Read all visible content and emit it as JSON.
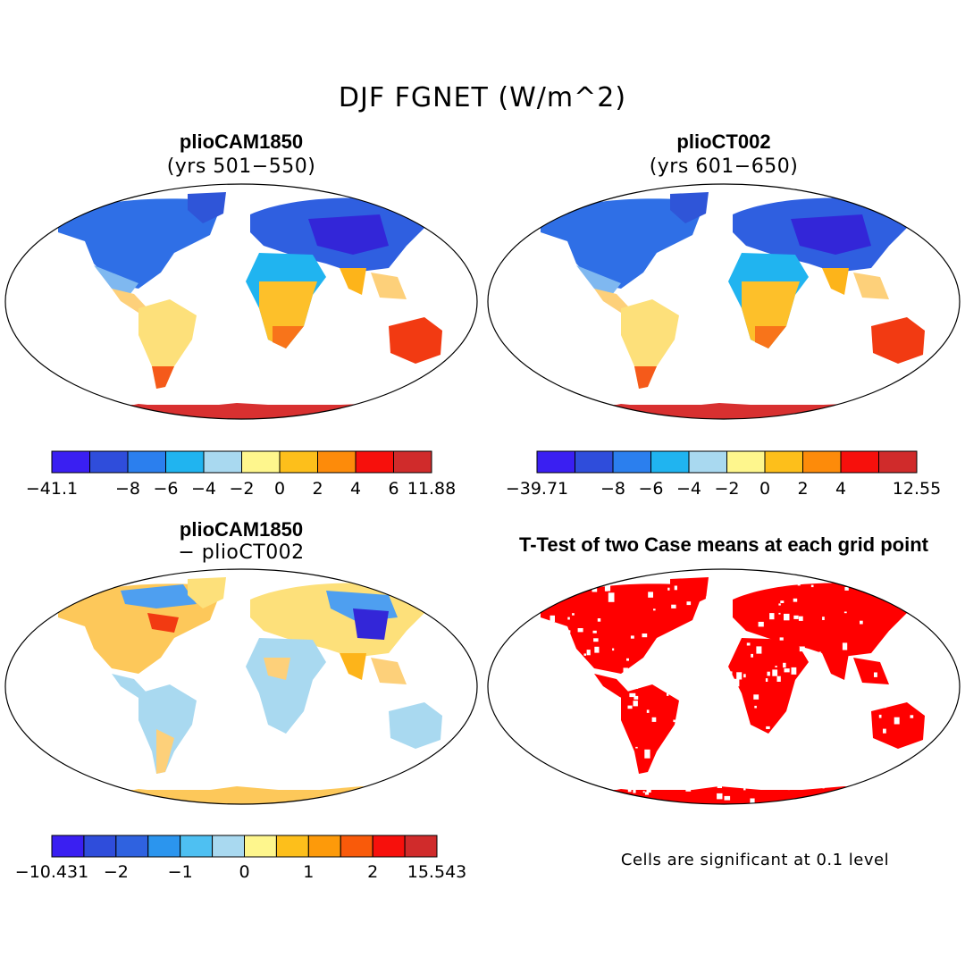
{
  "title": "DJF FGNET (W/m^2)",
  "panels": [
    {
      "title": "plioCAM1850",
      "subtitle": "(yrs 501−550)",
      "colorbar": {
        "colors": [
          "#3a1ff2",
          "#2f4ddb",
          "#2b7fee",
          "#20b4f0",
          "#a9d9f0",
          "#fef68d",
          "#fdbf1b",
          "#fd8b0a",
          "#f7100c",
          "#d02b2b"
        ],
        "labels": [
          "−41.1",
          "−8",
          "−6",
          "−4",
          "−2",
          "0",
          "2",
          "4",
          "6",
          "11.88"
        ],
        "label_positions": [
          0,
          2,
          3,
          4,
          5,
          6,
          7,
          8,
          9,
          10
        ]
      }
    },
    {
      "title": "plioCT002",
      "subtitle": "(yrs 601−650)",
      "colorbar": {
        "colors": [
          "#3a1ff2",
          "#2f4ddb",
          "#2b7fee",
          "#20b4f0",
          "#a9d9f0",
          "#fef68d",
          "#fdbf1b",
          "#fd8b0a",
          "#f7100c",
          "#d02b2b"
        ],
        "labels": [
          "−39.71",
          "−8",
          "−6",
          "−4",
          "−2",
          "0",
          "2",
          "4",
          "12.55"
        ],
        "label_positions": [
          0,
          2,
          3,
          4,
          5,
          6,
          7,
          8,
          10
        ]
      }
    },
    {
      "title": "plioCAM1850",
      "subtitle": "− plioCT002",
      "colorbar": {
        "colors": [
          "#3a1ff2",
          "#2f4ddb",
          "#2f62e0",
          "#2b95ee",
          "#4ec0f2",
          "#a9d9f0",
          "#fef68d",
          "#fdbf1b",
          "#fd9a0a",
          "#f95a0a",
          "#f7100c",
          "#d02b2b"
        ],
        "labels": [
          "−10.431",
          "−2",
          "−1",
          "0",
          "1",
          "2",
          "15.543"
        ],
        "label_positions": [
          0,
          2,
          4,
          6,
          8,
          10,
          12
        ]
      }
    },
    {
      "title": "T-Test of two Case means at each grid point",
      "footnote": "Cells are significant at 0.1 level"
    }
  ],
  "colors": {
    "ocean": "#ffffff",
    "outline": "#000000",
    "significant": "#ff0000",
    "cold_land": "#2f6fe6",
    "tropic_land": "#fdc02a",
    "hot_land": "#f23a12",
    "antarctica": "#d83030",
    "diff_land": "#b3d8f0"
  }
}
